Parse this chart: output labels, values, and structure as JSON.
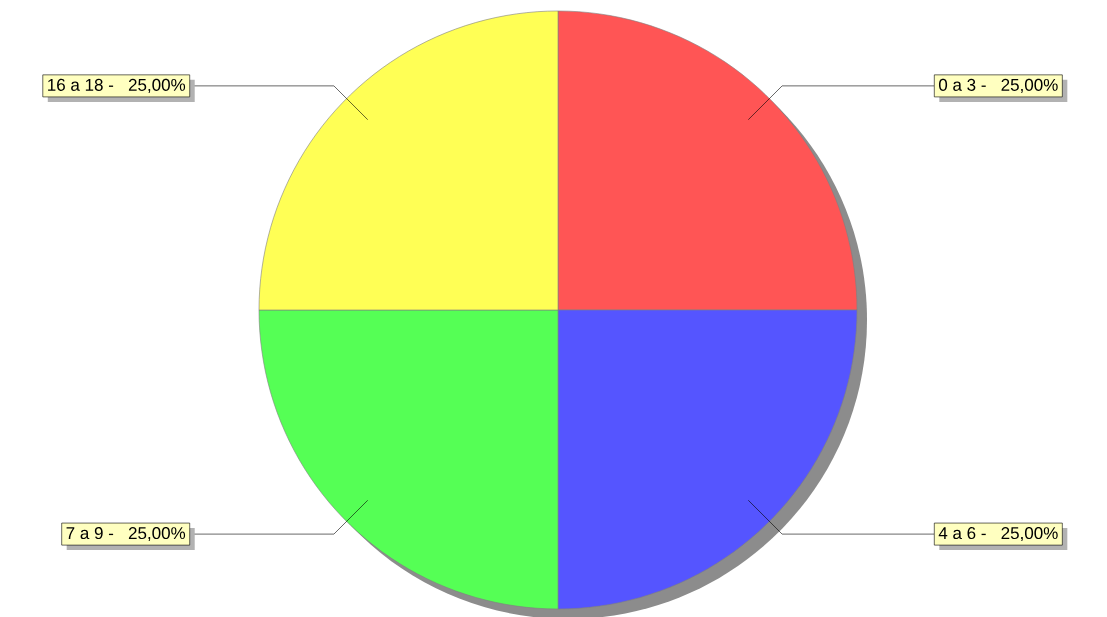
{
  "chart_data": {
    "type": "pie",
    "categories": [
      "0 a  3 -",
      "4 a  6 -",
      "7 a  9 -",
      "16 a 18 -"
    ],
    "values": [
      25,
      25,
      25,
      25
    ],
    "value_labels": [
      "25,00%",
      "25,00%",
      "25,00%",
      "25,00%"
    ],
    "colors": [
      "#ff5555",
      "#5555ff",
      "#55ff55",
      "#ffff55"
    ]
  }
}
